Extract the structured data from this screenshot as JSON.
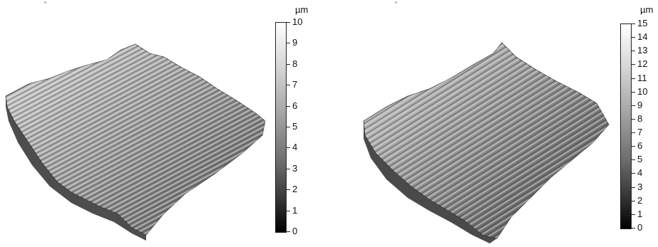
{
  "panels": [
    {
      "id": "left",
      "top_mark": "”",
      "unit": "µm",
      "scale": {
        "max": 10,
        "ticks": [
          "10",
          "9",
          "8",
          "7",
          "6",
          "5",
          "4",
          "3",
          "2",
          "1",
          "0"
        ]
      },
      "colors": {
        "surface_light": "#d8d8d8",
        "surface_dark": "#3a3a3a"
      }
    },
    {
      "id": "right",
      "top_mark": "”",
      "unit": "µm",
      "scale": {
        "max": 15,
        "ticks": [
          "15",
          "14",
          "13",
          "12",
          "11",
          "10",
          "9",
          "8",
          "7",
          "6",
          "5",
          "4",
          "3",
          "2",
          "1",
          "0"
        ]
      },
      "colors": {
        "surface_light": "#d8d8d8",
        "surface_dark": "#3a3a3a"
      }
    }
  ]
}
